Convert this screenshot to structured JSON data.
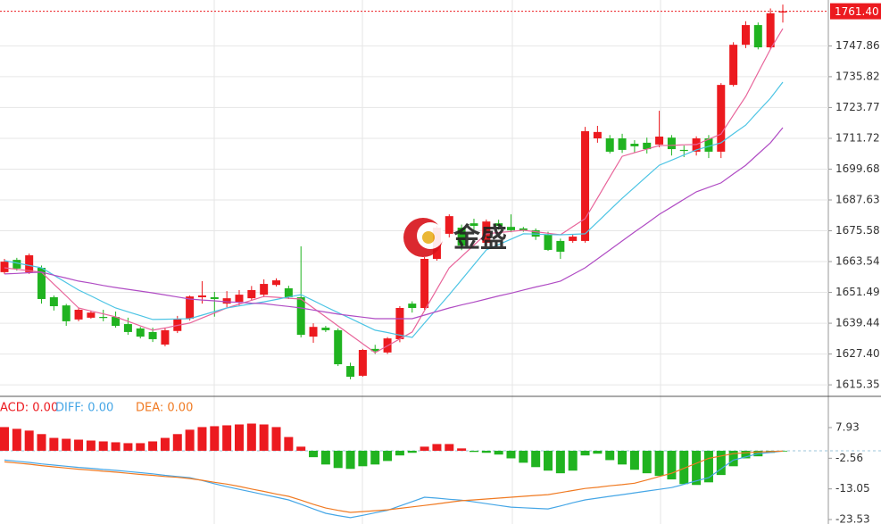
{
  "chart_data": [
    {
      "type": "candlestick",
      "watermark": "金盛",
      "last_price": {
        "value": 1761.4,
        "label": "1761.40"
      },
      "up_color": "#ec1a1f",
      "down_color": "#20b320",
      "ylim": [
        1611.2,
        1765.8
      ],
      "yticks": [
        1747.86,
        1735.82,
        {
          "value": 1723.77,
          "label": "1723.77"
        },
        1711.72,
        1699.68,
        1687.63,
        1675.58,
        1663.54,
        1651.49,
        1639.44,
        {
          "value": 1627.4,
          "label": "1627.40"
        },
        1615.35
      ],
      "grid": true,
      "open": [
        1659.4,
        1664.2,
        1659.4,
        1661.1,
        1649.6,
        1646.4,
        1640.9,
        1641.6,
        1641.9,
        1641.9,
        1639.1,
        1637.4,
        1636.0,
        1631.1,
        1636.4,
        1641.2,
        1649.6,
        1649.6,
        1647.1,
        1647.8,
        1649.2,
        1650.6,
        1654.4,
        1653.1,
        1649.6,
        1634.2,
        1637.7,
        1636.7,
        1622.7,
        1618.9,
        1629.4,
        1628.0,
        1633.2,
        1647.1,
        1645.4,
        1664.6,
        1674.4,
        1676.8,
        1678.5,
        1670.9,
        1678.5,
        1677.1,
        1676.5,
        1675.8,
        1674.0,
        1671.6,
        1671.6,
        1671.6,
        1711.7,
        1711.7,
        1711.7,
        1709.6,
        1710.0,
        1709.3,
        1712.0,
        1707.2,
        1706.5,
        1711.7,
        1706.5,
        1732.6,
        1748.3,
        1756.0,
        1747.3,
        1760.9
      ],
      "high": [
        1664.6,
        1665.0,
        1666.7,
        1662.0,
        1650.3,
        1647.0,
        1645.4,
        1644.4,
        1644.7,
        1644.0,
        1641.6,
        1638.0,
        1637.7,
        1637.7,
        1642.3,
        1650.3,
        1655.9,
        1651.7,
        1652.0,
        1652.4,
        1654.0,
        1656.6,
        1657.0,
        1654.1,
        1669.5,
        1639.4,
        1638.4,
        1637.4,
        1624.0,
        1629.4,
        1631.0,
        1634.0,
        1646.1,
        1648.0,
        1665.3,
        1677.5,
        1682.0,
        1678.0,
        1680.3,
        1680.0,
        1679.9,
        1682.0,
        1677.1,
        1676.5,
        1675.2,
        1672.5,
        1674.0,
        1716.2,
        1716.6,
        1713.0,
        1713.5,
        1711.0,
        1712.0,
        1722.5,
        1713.0,
        1708.9,
        1712.5,
        1713.0,
        1733.3,
        1749.3,
        1757.5,
        1757.0,
        1762.5,
        1764.0
      ],
      "low": [
        1658.7,
        1660.0,
        1658.7,
        1647.1,
        1644.4,
        1638.4,
        1640.2,
        1641.2,
        1640.2,
        1637.7,
        1634.9,
        1633.5,
        1632.1,
        1630.4,
        1635.6,
        1640.5,
        1647.1,
        1642.0,
        1645.7,
        1646.4,
        1648.2,
        1649.6,
        1653.8,
        1648.9,
        1633.9,
        1631.8,
        1636.0,
        1622.7,
        1617.5,
        1618.5,
        1627.4,
        1627.4,
        1632.0,
        1643.6,
        1644.7,
        1663.9,
        1673.0,
        1668.0,
        1676.0,
        1670.0,
        1676.0,
        1675.0,
        1675.2,
        1672.0,
        1667.7,
        1664.6,
        1670.9,
        1670.9,
        1710.0,
        1705.8,
        1706.0,
        1706.0,
        1705.8,
        1708.2,
        1705.0,
        1704.4,
        1705.0,
        1704.0,
        1704.0,
        1732.0,
        1747.0,
        1746.5,
        1746.5,
        1757.0
      ],
      "close": [
        1663.5,
        1660.8,
        1666.0,
        1648.9,
        1646.1,
        1640.2,
        1644.7,
        1643.6,
        1641.6,
        1638.4,
        1636.0,
        1634.2,
        1633.2,
        1636.7,
        1641.2,
        1649.9,
        1650.3,
        1648.9,
        1649.2,
        1650.6,
        1652.4,
        1654.8,
        1656.2,
        1649.6,
        1634.9,
        1638.0,
        1636.7,
        1623.4,
        1618.5,
        1629.0,
        1628.5,
        1633.5,
        1645.4,
        1645.4,
        1664.6,
        1676.8,
        1681.3,
        1669.8,
        1677.5,
        1679.2,
        1677.5,
        1675.8,
        1675.8,
        1673.3,
        1668.1,
        1667.4,
        1673.3,
        1714.5,
        1714.2,
        1706.5,
        1707.2,
        1708.6,
        1707.5,
        1712.4,
        1707.5,
        1707.0,
        1711.7,
        1706.5,
        1732.6,
        1748.3,
        1756.0,
        1747.3,
        1760.6,
        1761.4
      ],
      "series": [
        {
          "color": "#e8649a",
          "values": [
            1661.1,
            1660.5,
            1660.0,
            1659.4,
            1654.7,
            1650.1,
            1645.4,
            1644.2,
            1643.1,
            1641.9,
            1640.2,
            1638.4,
            1636.7,
            1637.6,
            1638.6,
            1639.5,
            1641.5,
            1643.4,
            1645.4,
            1646.9,
            1648.4,
            1649.9,
            1649.6,
            1649.2,
            1648.9,
            1645.4,
            1641.9,
            1638.4,
            1634.9,
            1631.4,
            1627.9,
            1630.6,
            1633.3,
            1636.0,
            1644.4,
            1652.7,
            1661.1,
            1665.5,
            1670.0,
            1674.4,
            1674.9,
            1675.3,
            1675.8,
            1675.2,
            1674.6,
            1674.0,
            1677.2,
            1680.3,
            1688.4,
            1696.6,
            1704.7,
            1706.1,
            1707.5,
            1708.9,
            1709.0,
            1709.2,
            1709.3,
            1711.4,
            1713.4,
            1720.8,
            1728.1,
            1737.4,
            1746.6,
            1754.6
          ]
        },
        {
          "color": "#4cc4e4",
          "values": [
            1663.9,
            1663.0,
            1662.0,
            1661.1,
            1658.2,
            1655.3,
            1652.4,
            1650.1,
            1647.7,
            1645.4,
            1643.9,
            1642.4,
            1640.9,
            1641.0,
            1641.1,
            1641.2,
            1642.6,
            1644.0,
            1645.4,
            1646.2,
            1647.0,
            1647.8,
            1648.7,
            1649.7,
            1650.6,
            1648.3,
            1645.9,
            1643.6,
            1641.3,
            1639.0,
            1636.7,
            1635.8,
            1634.8,
            1633.9,
            1639.5,
            1645.0,
            1650.6,
            1656.4,
            1662.3,
            1668.1,
            1670.2,
            1672.3,
            1674.4,
            1674.3,
            1674.1,
            1674.0,
            1674.2,
            1674.4,
            1679.0,
            1683.7,
            1688.3,
            1692.6,
            1696.9,
            1701.2,
            1703.2,
            1705.2,
            1707.2,
            1708.6,
            1710.0,
            1713.5,
            1716.9,
            1722.2,
            1727.4,
            1733.7
          ]
        },
        {
          "color": "#b04cc4",
          "values": [
            1658.7,
            1658.9,
            1659.2,
            1659.4,
            1658.2,
            1657.1,
            1655.9,
            1655.1,
            1654.2,
            1653.4,
            1652.7,
            1652.0,
            1651.3,
            1650.5,
            1649.7,
            1648.9,
            1648.5,
            1648.2,
            1647.8,
            1647.6,
            1647.3,
            1647.1,
            1646.5,
            1646.0,
            1645.4,
            1644.6,
            1643.8,
            1643.0,
            1642.4,
            1641.8,
            1641.2,
            1641.2,
            1641.2,
            1641.2,
            1642.6,
            1644.0,
            1645.4,
            1646.6,
            1647.7,
            1648.9,
            1650.1,
            1651.2,
            1652.4,
            1653.6,
            1654.7,
            1655.9,
            1658.5,
            1661.1,
            1664.6,
            1668.1,
            1671.6,
            1675.1,
            1678.5,
            1682.0,
            1684.9,
            1687.9,
            1690.8,
            1692.6,
            1694.3,
            1697.8,
            1701.2,
            1705.6,
            1710.0,
            1715.9
          ]
        }
      ]
    },
    {
      "type": "macd",
      "ylim": [
        -25.06,
        18.31
      ],
      "yticks": [
        7.93,
        -2.56,
        -13.05,
        -23.53
      ],
      "histogram": {
        "legend_label": "ACD: 0.00",
        "up_color": "#ec1a1f",
        "down_color": "#20b320",
        "values": [
          8.1,
          7.5,
          6.9,
          5.7,
          4.4,
          4.1,
          3.8,
          3.5,
          3.2,
          2.9,
          2.6,
          2.6,
          3.2,
          4.4,
          5.7,
          7.2,
          8.1,
          8.4,
          8.7,
          9.0,
          9.3,
          9.0,
          8.1,
          4.7,
          1.4,
          -2.2,
          -4.7,
          -5.9,
          -6.2,
          -5.3,
          -4.7,
          -3.5,
          -1.6,
          -0.7,
          1.4,
          2.3,
          2.3,
          0.8,
          -0.4,
          -0.7,
          -1.3,
          -2.6,
          -4.1,
          -5.6,
          -6.8,
          -7.7,
          -6.8,
          -1.6,
          -1.0,
          -3.2,
          -4.7,
          -6.5,
          -7.7,
          -8.6,
          -9.8,
          -11.4,
          -11.7,
          -10.8,
          -8.3,
          -5.3,
          -2.6,
          -1.9,
          -0.7,
          -0.1
        ]
      },
      "series": [
        {
          "legend_label": "DIFF: 0.00",
          "color": "#45a6e6",
          "values": [
            -3.2,
            -3.6,
            -4.0,
            -4.5,
            -4.9,
            -5.3,
            -5.7,
            -6.0,
            -6.4,
            -6.7,
            -7.1,
            -7.5,
            -7.9,
            -8.4,
            -8.8,
            -9.2,
            -10.2,
            -11.3,
            -12.3,
            -13.2,
            -14.1,
            -15.0,
            -15.9,
            -16.8,
            -18.3,
            -19.9,
            -21.4,
            -22.2,
            -22.9,
            -22.1,
            -21.2,
            -20.4,
            -18.9,
            -17.4,
            -15.9,
            -16.2,
            -16.6,
            -16.9,
            -17.5,
            -18.1,
            -18.7,
            -19.3,
            -19.5,
            -19.7,
            -19.9,
            -18.9,
            -17.8,
            -16.8,
            -16.2,
            -15.6,
            -15.0,
            -14.4,
            -13.8,
            -13.2,
            -12.6,
            -11.5,
            -10.3,
            -9.2,
            -6.2,
            -3.2,
            -2.1,
            -1.0,
            -0.6,
            -0.1
          ]
        },
        {
          "legend_label": "DEA: 0.00",
          "color": "#f07a22",
          "values": [
            -3.8,
            -4.2,
            -4.6,
            -5.1,
            -5.5,
            -5.9,
            -6.3,
            -6.6,
            -7.0,
            -7.3,
            -7.7,
            -8.1,
            -8.4,
            -8.8,
            -9.1,
            -9.5,
            -10.1,
            -10.8,
            -11.4,
            -12.2,
            -13.1,
            -13.9,
            -14.8,
            -15.6,
            -16.9,
            -18.3,
            -19.6,
            -20.4,
            -21.1,
            -20.8,
            -20.5,
            -20.2,
            -19.7,
            -19.2,
            -18.7,
            -18.2,
            -17.6,
            -17.1,
            -16.8,
            -16.5,
            -16.2,
            -15.9,
            -15.6,
            -15.3,
            -15.0,
            -14.3,
            -13.6,
            -12.9,
            -12.5,
            -12.0,
            -11.6,
            -11.1,
            -10.0,
            -8.8,
            -7.7,
            -6.0,
            -4.3,
            -2.6,
            -1.8,
            -1.0,
            -0.7,
            -0.4,
            -0.3,
            -0.1
          ]
        }
      ]
    }
  ]
}
